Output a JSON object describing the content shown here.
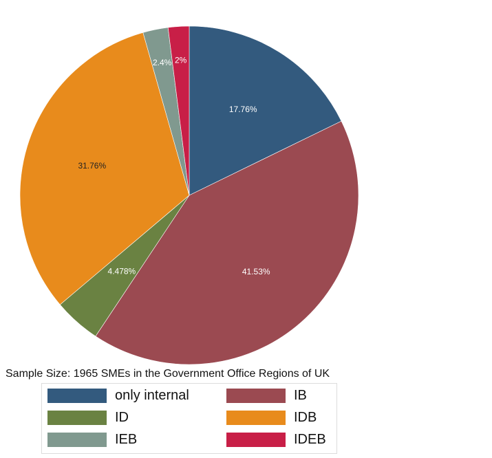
{
  "chart_data": {
    "type": "pie",
    "caption": "Sample Size: 1965 SMEs in the Government Office Regions of UK",
    "slices": [
      {
        "name": "only internal",
        "value": 17.76,
        "label": "17.76%",
        "color": "#335a7e"
      },
      {
        "name": "IB",
        "value": 41.53,
        "label": "41.53%",
        "color": "#9b4a51"
      },
      {
        "name": "ID",
        "value": 4.478,
        "label": "4.478%",
        "color": "#6a8242"
      },
      {
        "name": "IDB",
        "value": 31.76,
        "label": "31.76%",
        "color": "#e88b1c"
      },
      {
        "name": "IEB",
        "value": 2.4,
        "label": "2.4%",
        "color": "#80998f"
      },
      {
        "name": "IDEB",
        "value": 2,
        "label": "2%",
        "color": "#c81f47"
      }
    ],
    "label_colors": [
      "#ffffff",
      "#ffffff",
      "#ffffff",
      "#222222",
      "#ffffff",
      "#ffffff"
    ],
    "legend_order": [
      "only internal",
      "IB",
      "ID",
      "IDB",
      "IEB",
      "IDEB"
    ]
  }
}
